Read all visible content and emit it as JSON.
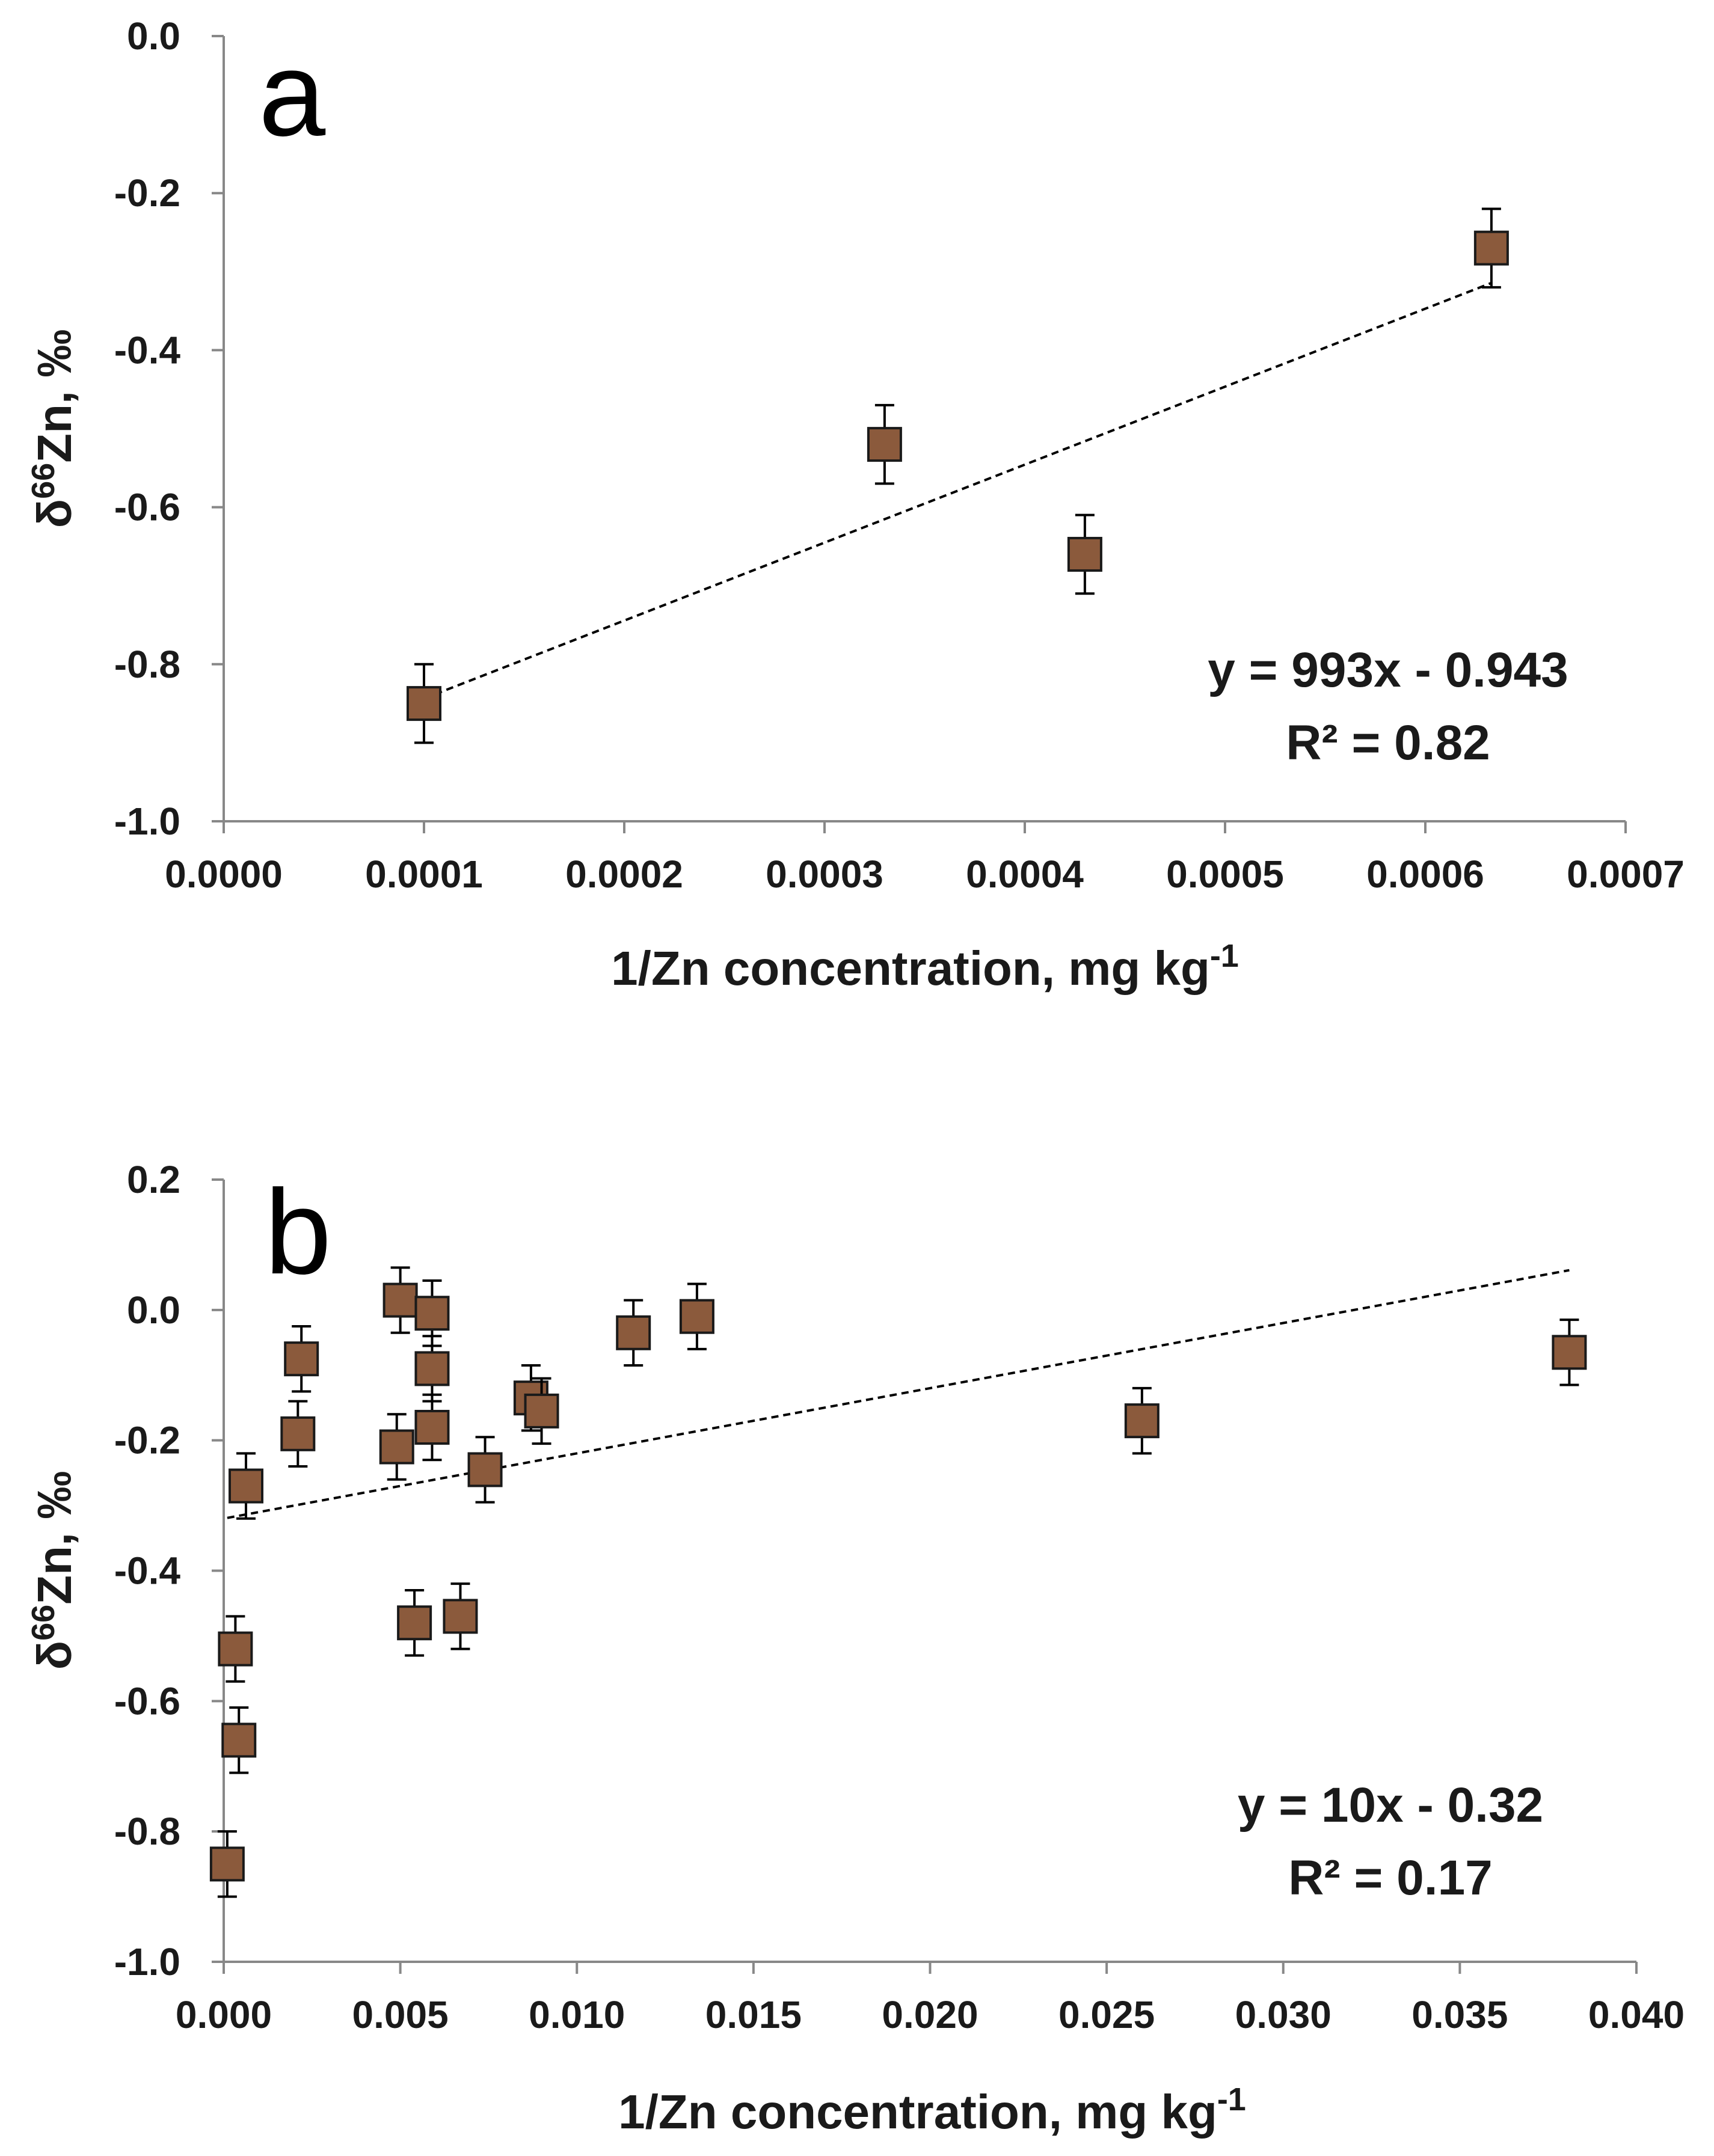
{
  "chart_data": [
    {
      "type": "scatter",
      "panel_label": "a",
      "xlabel": "1/Zn concentration, mg kg",
      "xlabel_sup": "-1",
      "ylabel_prefix": "δ",
      "ylabel_sup": "66",
      "ylabel_main": "Zn, ‰",
      "xlim": [
        0,
        0.0007
      ],
      "ylim": [
        -1.0,
        0.0
      ],
      "x_ticks": [
        0,
        0.0001,
        0.0002,
        0.0003,
        0.0004,
        0.0005,
        0.0006,
        0.0007
      ],
      "x_tick_labels": [
        "0.0000",
        "0.0001",
        "0.0002",
        "0.0003",
        "0.0004",
        "0.0005",
        "0.0006",
        "0.0007"
      ],
      "y_ticks": [
        0.0,
        -0.2,
        -0.4,
        -0.6,
        -0.8,
        -1.0
      ],
      "y_tick_labels": [
        "0.0",
        "-0.2",
        "-0.4",
        "-0.6",
        "-0.8",
        "-1.0"
      ],
      "points": [
        {
          "x": 0.0001,
          "y": -0.85,
          "err": 0.05
        },
        {
          "x": 0.00033,
          "y": -0.52,
          "err": 0.05
        },
        {
          "x": 0.00043,
          "y": -0.66,
          "err": 0.05
        },
        {
          "x": 0.000633,
          "y": -0.27,
          "err": 0.05
        }
      ],
      "trendline": {
        "slope": 993,
        "intercept": -0.943,
        "x_range": [
          0.0001,
          0.000633
        ]
      },
      "equation": "y = 993x - 0.943",
      "r_squared": "R² = 0.82",
      "marker_color": "#8B5A3C",
      "marker_edge": "#1a1a1a"
    },
    {
      "type": "scatter",
      "panel_label": "b",
      "xlabel": "1/Zn concentration, mg kg",
      "xlabel_sup": "-1",
      "ylabel_prefix": "δ",
      "ylabel_sup": "66",
      "ylabel_main": "Zn, ‰",
      "xlim": [
        0,
        0.04
      ],
      "ylim": [
        -1.0,
        0.2
      ],
      "x_ticks": [
        0,
        0.005,
        0.01,
        0.015,
        0.02,
        0.025,
        0.03,
        0.035,
        0.04
      ],
      "x_tick_labels": [
        "0.000",
        "0.005",
        "0.010",
        "0.015",
        "0.020",
        "0.025",
        "0.030",
        "0.035",
        "0.040"
      ],
      "y_ticks": [
        0.2,
        0.0,
        -0.2,
        -0.4,
        -0.6,
        -0.8,
        -1.0
      ],
      "y_tick_labels": [
        "0.2",
        "0.0",
        "-0.2",
        "-0.4",
        "-0.6",
        "-0.8",
        "-1.0"
      ],
      "points": [
        {
          "x": 0.0001,
          "y": -0.85,
          "err": 0.05
        },
        {
          "x": 0.00033,
          "y": -0.52,
          "err": 0.05
        },
        {
          "x": 0.00043,
          "y": -0.66,
          "err": 0.05
        },
        {
          "x": 0.00063,
          "y": -0.27,
          "err": 0.05
        },
        {
          "x": 0.0021,
          "y": -0.19,
          "err": 0.05
        },
        {
          "x": 0.0022,
          "y": -0.075,
          "err": 0.05
        },
        {
          "x": 0.0049,
          "y": -0.21,
          "err": 0.05
        },
        {
          "x": 0.005,
          "y": 0.015,
          "err": 0.05
        },
        {
          "x": 0.0054,
          "y": -0.48,
          "err": 0.05
        },
        {
          "x": 0.0059,
          "y": -0.005,
          "err": 0.05
        },
        {
          "x": 0.0059,
          "y": -0.09,
          "err": 0.05
        },
        {
          "x": 0.0059,
          "y": -0.18,
          "err": 0.05
        },
        {
          "x": 0.0067,
          "y": -0.47,
          "err": 0.05
        },
        {
          "x": 0.0074,
          "y": -0.245,
          "err": 0.05
        },
        {
          "x": 0.0087,
          "y": -0.135,
          "err": 0.05
        },
        {
          "x": 0.009,
          "y": -0.155,
          "err": 0.05
        },
        {
          "x": 0.0116,
          "y": -0.035,
          "err": 0.05
        },
        {
          "x": 0.0134,
          "y": -0.01,
          "err": 0.05
        },
        {
          "x": 0.026,
          "y": -0.17,
          "err": 0.05
        },
        {
          "x": 0.0381,
          "y": -0.065,
          "err": 0.05
        }
      ],
      "trendline": {
        "slope": 10,
        "intercept": -0.32,
        "x_range": [
          0.0001,
          0.0381
        ]
      },
      "equation": "y = 10x - 0.32",
      "r_squared": "R² = 0.17",
      "marker_color": "#8B5A3C",
      "marker_edge": "#1a1a1a"
    }
  ]
}
